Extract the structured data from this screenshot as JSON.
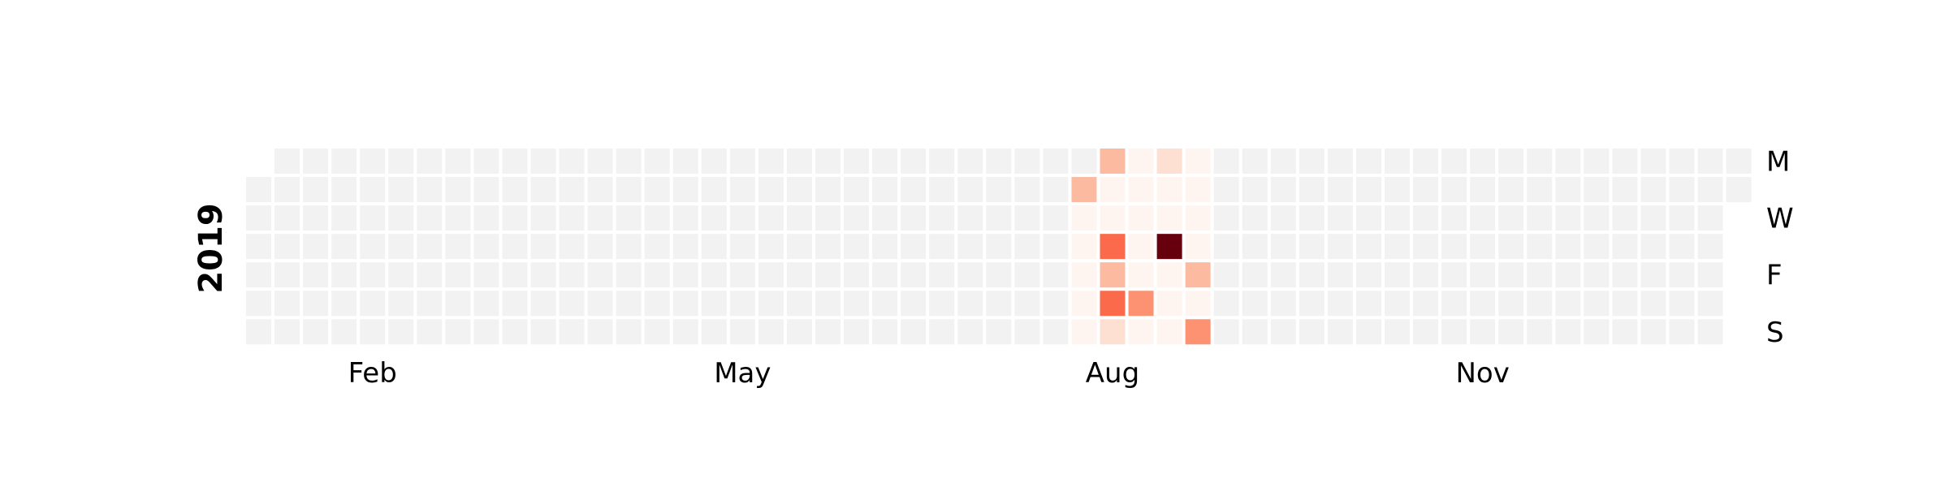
{
  "chart_data": {
    "type": "heatmap",
    "year": "2019",
    "start_date": "2019-01-01",
    "end_date": "2019-12-31",
    "row_labels": [
      "M",
      "",
      "W",
      "",
      "F",
      "",
      "S"
    ],
    "month_ticks": [
      {
        "label": "Feb",
        "date": "2019-02-01"
      },
      {
        "label": "May",
        "date": "2019-05-01"
      },
      {
        "label": "Aug",
        "date": "2019-08-01"
      },
      {
        "label": "Nov",
        "date": "2019-11-01"
      }
    ],
    "colors": {
      "empty": "#f2f2f2",
      "scale": [
        "#fff5f0",
        "#fee0d2",
        "#fcbba1",
        "#fc9272",
        "#fb6a4a",
        "#ef3b2c",
        "#cb181d",
        "#a50f15",
        "#67000d"
      ]
    },
    "value_range": [
      0,
      8
    ],
    "values": [
      {
        "date": "2019-07-23",
        "value": 2
      },
      {
        "date": "2019-07-24",
        "value": 0
      },
      {
        "date": "2019-07-25",
        "value": 0
      },
      {
        "date": "2019-07-26",
        "value": 0
      },
      {
        "date": "2019-07-27",
        "value": 0
      },
      {
        "date": "2019-07-28",
        "value": 0
      },
      {
        "date": "2019-07-29",
        "value": 2
      },
      {
        "date": "2019-07-30",
        "value": 0
      },
      {
        "date": "2019-07-31",
        "value": 0
      },
      {
        "date": "2019-08-01",
        "value": 4
      },
      {
        "date": "2019-08-02",
        "value": 2
      },
      {
        "date": "2019-08-03",
        "value": 4
      },
      {
        "date": "2019-08-04",
        "value": 1
      },
      {
        "date": "2019-08-05",
        "value": 0
      },
      {
        "date": "2019-08-06",
        "value": 0
      },
      {
        "date": "2019-08-07",
        "value": 0
      },
      {
        "date": "2019-08-08",
        "value": 0
      },
      {
        "date": "2019-08-09",
        "value": 0
      },
      {
        "date": "2019-08-10",
        "value": 3
      },
      {
        "date": "2019-08-11",
        "value": 0
      },
      {
        "date": "2019-08-12",
        "value": 1
      },
      {
        "date": "2019-08-13",
        "value": 0
      },
      {
        "date": "2019-08-14",
        "value": 0
      },
      {
        "date": "2019-08-15",
        "value": 8
      },
      {
        "date": "2019-08-16",
        "value": 0
      },
      {
        "date": "2019-08-17",
        "value": 0
      },
      {
        "date": "2019-08-18",
        "value": 0
      },
      {
        "date": "2019-08-19",
        "value": 0
      },
      {
        "date": "2019-08-20",
        "value": 0
      },
      {
        "date": "2019-08-21",
        "value": 0
      },
      {
        "date": "2019-08-22",
        "value": 0
      },
      {
        "date": "2019-08-23",
        "value": 2
      },
      {
        "date": "2019-08-24",
        "value": 0
      },
      {
        "date": "2019-08-25",
        "value": 3
      }
    ]
  }
}
